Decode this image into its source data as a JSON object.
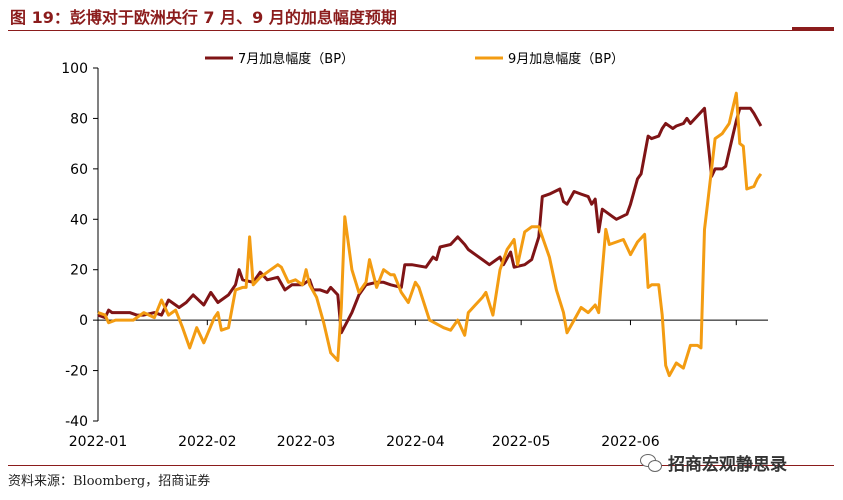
{
  "figure": {
    "title": "图 19：彭博对于欧洲央行 7 月、9 月的加息幅度预期",
    "source": "资料来源：Bloomberg，招商证券",
    "watermark": "招商宏观静思录",
    "watermark_icon": "wechat-icon"
  },
  "chart_data": {
    "type": "line",
    "x_ticks": [
      "2022-01",
      "2022-02",
      "2022-03",
      "2022-04",
      "2022-05",
      "2022-06"
    ],
    "ylim": [
      -40,
      100
    ],
    "y_ticks": [
      -40,
      -20,
      0,
      20,
      40,
      60,
      80,
      100
    ],
    "grid": false,
    "legend_position": "top",
    "series": [
      {
        "name": "7月加息幅度（BP）",
        "color": "#7f1416",
        "points": [
          [
            "2022-01-01",
            2
          ],
          [
            "2022-01-03",
            1
          ],
          [
            "2022-01-04",
            4
          ],
          [
            "2022-01-05",
            3
          ],
          [
            "2022-01-07",
            3
          ],
          [
            "2022-01-10",
            3
          ],
          [
            "2022-01-12",
            2
          ],
          [
            "2022-01-14",
            2
          ],
          [
            "2022-01-17",
            3
          ],
          [
            "2022-01-19",
            2
          ],
          [
            "2022-01-21",
            8
          ],
          [
            "2022-01-24",
            5
          ],
          [
            "2022-01-26",
            7
          ],
          [
            "2022-01-28",
            10
          ],
          [
            "2022-01-31",
            6
          ],
          [
            "2022-02-02",
            11
          ],
          [
            "2022-02-04",
            7
          ],
          [
            "2022-02-07",
            10
          ],
          [
            "2022-02-09",
            14
          ],
          [
            "2022-02-10",
            20
          ],
          [
            "2022-02-11",
            16
          ],
          [
            "2022-02-14",
            15
          ],
          [
            "2022-02-16",
            19
          ],
          [
            "2022-02-18",
            16
          ],
          [
            "2022-02-21",
            17
          ],
          [
            "2022-02-23",
            12
          ],
          [
            "2022-02-25",
            14
          ],
          [
            "2022-02-28",
            14
          ],
          [
            "2022-03-02",
            16
          ],
          [
            "2022-03-03",
            12
          ],
          [
            "2022-03-05",
            12
          ],
          [
            "2022-03-07",
            11
          ],
          [
            "2022-03-08",
            13
          ],
          [
            "2022-03-10",
            10
          ],
          [
            "2022-03-11",
            -5
          ],
          [
            "2022-03-14",
            3
          ],
          [
            "2022-03-16",
            10
          ],
          [
            "2022-03-18",
            14
          ],
          [
            "2022-03-21",
            15
          ],
          [
            "2022-03-23",
            15
          ],
          [
            "2022-03-25",
            14
          ],
          [
            "2022-03-28",
            13
          ],
          [
            "2022-03-29",
            22
          ],
          [
            "2022-03-31",
            22
          ],
          [
            "2022-04-04",
            21
          ],
          [
            "2022-04-06",
            25
          ],
          [
            "2022-04-07",
            24
          ],
          [
            "2022-04-08",
            29
          ],
          [
            "2022-04-11",
            30
          ],
          [
            "2022-04-13",
            33
          ],
          [
            "2022-04-15",
            30
          ],
          [
            "2022-04-16",
            28
          ],
          [
            "2022-04-18",
            26
          ],
          [
            "2022-04-20",
            24
          ],
          [
            "2022-04-22",
            22
          ],
          [
            "2022-04-25",
            25
          ],
          [
            "2022-04-26",
            22
          ],
          [
            "2022-04-28",
            27
          ],
          [
            "2022-04-29",
            21
          ],
          [
            "2022-05-02",
            22
          ],
          [
            "2022-05-04",
            24
          ],
          [
            "2022-05-06",
            33
          ],
          [
            "2022-05-07",
            49
          ],
          [
            "2022-05-09",
            50
          ],
          [
            "2022-05-12",
            52
          ],
          [
            "2022-05-13",
            47
          ],
          [
            "2022-05-14",
            46
          ],
          [
            "2022-05-16",
            51
          ],
          [
            "2022-05-18",
            50
          ],
          [
            "2022-05-20",
            49
          ],
          [
            "2022-05-21",
            46
          ],
          [
            "2022-05-22",
            48
          ],
          [
            "2022-05-23",
            35
          ],
          [
            "2022-05-24",
            44
          ],
          [
            "2022-05-27",
            41
          ],
          [
            "2022-05-28",
            40
          ],
          [
            "2022-05-31",
            42
          ],
          [
            "2022-06-01",
            46
          ],
          [
            "2022-06-03",
            56
          ],
          [
            "2022-06-04",
            58
          ],
          [
            "2022-06-06",
            73
          ],
          [
            "2022-06-07",
            72
          ],
          [
            "2022-06-09",
            73
          ],
          [
            "2022-06-10",
            76
          ],
          [
            "2022-06-11",
            78
          ],
          [
            "2022-06-13",
            76
          ],
          [
            "2022-06-14",
            77
          ],
          [
            "2022-06-16",
            78
          ],
          [
            "2022-06-17",
            80
          ],
          [
            "2022-06-18",
            78
          ],
          [
            "2022-06-20",
            81
          ],
          [
            "2022-06-22",
            84
          ],
          [
            "2022-06-24",
            57
          ],
          [
            "2022-06-25",
            60
          ],
          [
            "2022-06-27",
            60
          ],
          [
            "2022-06-28",
            61
          ],
          [
            "2022-06-30",
            73
          ],
          [
            "2022-07-01",
            79
          ],
          [
            "2022-07-02",
            84
          ],
          [
            "2022-07-04",
            84
          ],
          [
            "2022-07-05",
            84
          ],
          [
            "2022-07-06",
            82
          ],
          [
            "2022-07-08",
            77
          ]
        ]
      },
      {
        "name": "9月加息幅度（BP）",
        "color": "#f39c12",
        "points": [
          [
            "2022-01-01",
            3
          ],
          [
            "2022-01-03",
            2
          ],
          [
            "2022-01-04",
            -1
          ],
          [
            "2022-01-06",
            0
          ],
          [
            "2022-01-08",
            0
          ],
          [
            "2022-01-11",
            0
          ],
          [
            "2022-01-14",
            3
          ],
          [
            "2022-01-17",
            1
          ],
          [
            "2022-01-19",
            8
          ],
          [
            "2022-01-21",
            2
          ],
          [
            "2022-01-23",
            4
          ],
          [
            "2022-01-25",
            -3
          ],
          [
            "2022-01-27",
            -11
          ],
          [
            "2022-01-29",
            -3
          ],
          [
            "2022-01-31",
            -9
          ],
          [
            "2022-02-03",
            1
          ],
          [
            "2022-02-04",
            3
          ],
          [
            "2022-02-05",
            -4
          ],
          [
            "2022-02-07",
            -3
          ],
          [
            "2022-02-09",
            12
          ],
          [
            "2022-02-11",
            13
          ],
          [
            "2022-02-12",
            13
          ],
          [
            "2022-02-13",
            33
          ],
          [
            "2022-02-14",
            14
          ],
          [
            "2022-02-16",
            17
          ],
          [
            "2022-02-18",
            19
          ],
          [
            "2022-02-21",
            22
          ],
          [
            "2022-02-22",
            21
          ],
          [
            "2022-02-24",
            15
          ],
          [
            "2022-02-26",
            16
          ],
          [
            "2022-02-28",
            14
          ],
          [
            "2022-03-01",
            20
          ],
          [
            "2022-03-02",
            14
          ],
          [
            "2022-03-04",
            9
          ],
          [
            "2022-03-06",
            -1
          ],
          [
            "2022-03-08",
            -13
          ],
          [
            "2022-03-10",
            -16
          ],
          [
            "2022-03-11",
            5
          ],
          [
            "2022-03-12",
            41
          ],
          [
            "2022-03-14",
            20
          ],
          [
            "2022-03-16",
            11
          ],
          [
            "2022-03-18",
            15
          ],
          [
            "2022-03-19",
            24
          ],
          [
            "2022-03-21",
            13
          ],
          [
            "2022-03-23",
            20
          ],
          [
            "2022-03-25",
            18
          ],
          [
            "2022-03-26",
            18
          ],
          [
            "2022-03-28",
            11
          ],
          [
            "2022-03-30",
            7
          ],
          [
            "2022-04-01",
            15
          ],
          [
            "2022-04-02",
            13
          ],
          [
            "2022-04-05",
            0
          ],
          [
            "2022-04-09",
            -3
          ],
          [
            "2022-04-11",
            -4
          ],
          [
            "2022-04-13",
            0
          ],
          [
            "2022-04-15",
            -6
          ],
          [
            "2022-04-16",
            3
          ],
          [
            "2022-04-18",
            6
          ],
          [
            "2022-04-20",
            9
          ],
          [
            "2022-04-21",
            11
          ],
          [
            "2022-04-23",
            2
          ],
          [
            "2022-04-25",
            20
          ],
          [
            "2022-04-27",
            28
          ],
          [
            "2022-04-29",
            32
          ],
          [
            "2022-04-30",
            22
          ],
          [
            "2022-05-02",
            35
          ],
          [
            "2022-05-04",
            37
          ],
          [
            "2022-05-06",
            37
          ],
          [
            "2022-05-09",
            25
          ],
          [
            "2022-05-11",
            12
          ],
          [
            "2022-05-13",
            3
          ],
          [
            "2022-05-14",
            -5
          ],
          [
            "2022-05-16",
            0
          ],
          [
            "2022-05-18",
            5
          ],
          [
            "2022-05-20",
            3
          ],
          [
            "2022-05-22",
            6
          ],
          [
            "2022-05-23",
            3
          ],
          [
            "2022-05-25",
            36
          ],
          [
            "2022-05-26",
            30
          ],
          [
            "2022-05-28",
            31
          ],
          [
            "2022-05-30",
            32
          ],
          [
            "2022-06-01",
            26
          ],
          [
            "2022-06-03",
            31
          ],
          [
            "2022-06-05",
            34
          ],
          [
            "2022-06-06",
            13
          ],
          [
            "2022-06-07",
            14
          ],
          [
            "2022-06-09",
            14
          ],
          [
            "2022-06-10",
            2
          ],
          [
            "2022-06-11",
            -18
          ],
          [
            "2022-06-12",
            -22
          ],
          [
            "2022-06-14",
            -17
          ],
          [
            "2022-06-16",
            -19
          ],
          [
            "2022-06-18",
            -10
          ],
          [
            "2022-06-20",
            -10
          ],
          [
            "2022-06-21",
            -11
          ],
          [
            "2022-06-22",
            36
          ],
          [
            "2022-06-23",
            48
          ],
          [
            "2022-06-25",
            72
          ],
          [
            "2022-06-27",
            74
          ],
          [
            "2022-06-28",
            76
          ],
          [
            "2022-06-29",
            78
          ],
          [
            "2022-07-01",
            90
          ],
          [
            "2022-07-02",
            70
          ],
          [
            "2022-07-03",
            69
          ],
          [
            "2022-07-04",
            52
          ],
          [
            "2022-07-06",
            53
          ],
          [
            "2022-07-07",
            56
          ],
          [
            "2022-07-08",
            58
          ]
        ]
      }
    ]
  }
}
